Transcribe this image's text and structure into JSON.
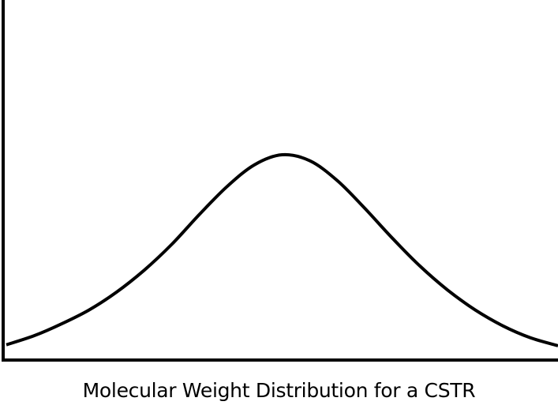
{
  "chart_data": {
    "type": "line",
    "title": "",
    "xlabel": "Molecular Weight Distribution for a CSTR",
    "ylabel": "",
    "grid": false,
    "legend": "none",
    "xlim": [
      0,
      1
    ],
    "ylim": [
      0,
      1
    ],
    "series": [
      {
        "x": [
          0.0,
          0.05,
          0.1,
          0.15,
          0.2,
          0.25,
          0.3,
          0.35,
          0.4,
          0.45,
          0.5,
          0.55,
          0.6,
          0.65,
          0.7,
          0.75,
          0.8,
          0.85,
          0.9,
          0.95,
          1.0
        ],
        "values": [
          0.045,
          0.09,
          0.15,
          0.22,
          0.31,
          0.42,
          0.55,
          0.7,
          0.84,
          0.95,
          1.0,
          0.97,
          0.87,
          0.73,
          0.58,
          0.44,
          0.32,
          0.22,
          0.14,
          0.08,
          0.04
        ]
      }
    ]
  },
  "colors": {
    "line": "#000000",
    "axis": "#000000",
    "background": "#ffffff"
  }
}
